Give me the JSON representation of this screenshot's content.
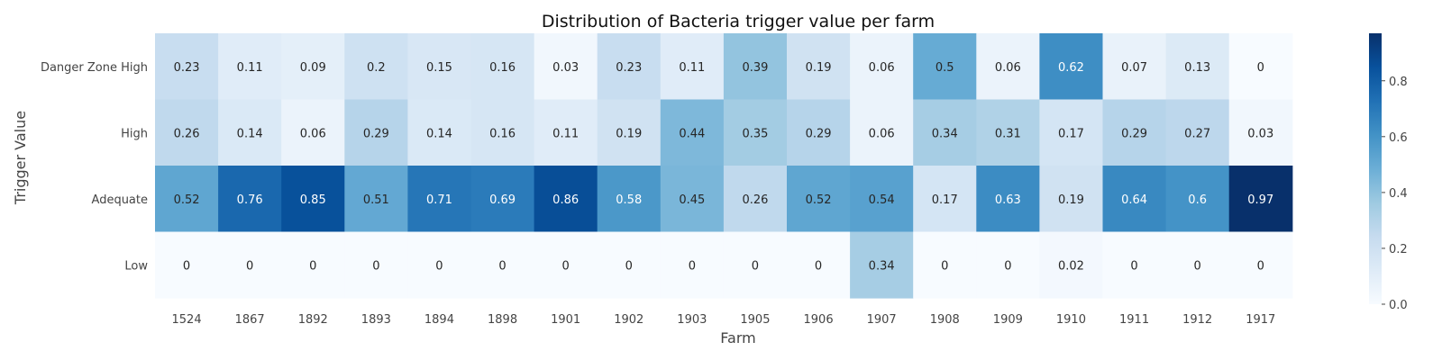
{
  "chart_data": {
    "type": "heatmap",
    "title": "Distribution of Bacteria trigger value per farm",
    "xlabel": "Farm",
    "ylabel": "Trigger Value",
    "x_categories": [
      "1524",
      "1867",
      "1892",
      "1893",
      "1894",
      "1898",
      "1901",
      "1902",
      "1903",
      "1905",
      "1906",
      "1907",
      "1908",
      "1909",
      "1910",
      "1911",
      "1912",
      "1917"
    ],
    "y_categories": [
      "Danger Zone High",
      "High",
      "Adequate",
      "Low"
    ],
    "values": [
      [
        0.23,
        0.11,
        0.09,
        0.2,
        0.15,
        0.16,
        0.03,
        0.23,
        0.11,
        0.39,
        0.19,
        0.06,
        0.5,
        0.06,
        0.62,
        0.07,
        0.13,
        0
      ],
      [
        0.26,
        0.14,
        0.06,
        0.29,
        0.14,
        0.16,
        0.11,
        0.19,
        0.44,
        0.35,
        0.29,
        0.06,
        0.34,
        0.31,
        0.17,
        0.29,
        0.27,
        0.03
      ],
      [
        0.52,
        0.76,
        0.85,
        0.51,
        0.71,
        0.69,
        0.86,
        0.58,
        0.45,
        0.26,
        0.52,
        0.54,
        0.17,
        0.63,
        0.19,
        0.64,
        0.6,
        0.97
      ],
      [
        0,
        0,
        0,
        0,
        0,
        0,
        0,
        0,
        0,
        0,
        0,
        0.34,
        0,
        0,
        0.02,
        0,
        0,
        0
      ]
    ],
    "colorbar": {
      "colormap": "Blues",
      "range": [
        0,
        0.97
      ],
      "ticks": [
        "0.0",
        "0.2",
        "0.4",
        "0.6",
        "0.8"
      ],
      "tick_values": [
        0,
        0.2,
        0.4,
        0.6,
        0.8
      ]
    }
  }
}
